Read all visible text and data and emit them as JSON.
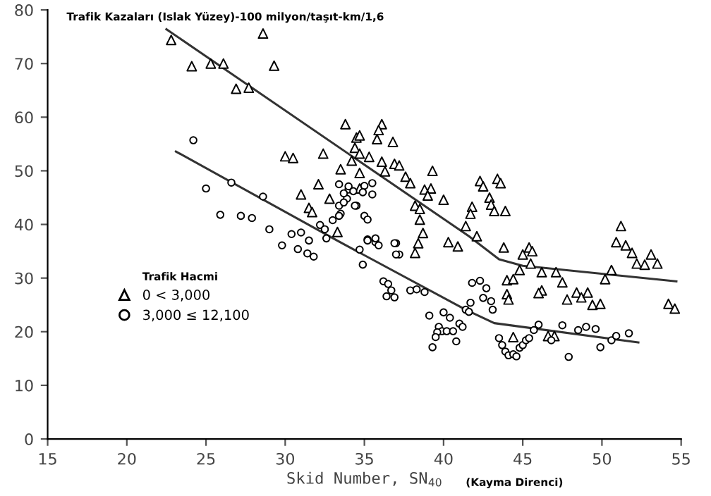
{
  "chart_data": {
    "type": "scatter",
    "title": "Trafik Kazaları (Islak Yüzey)-100 milyon/taşıt-km/1,6",
    "xlabel": "Skid Number, SN$_{40}$",
    "annotations": [
      "(Kayma Direnci)"
    ],
    "legend_title": "Trafik Hacmi",
    "legend": "left",
    "grid": false,
    "xlim": [
      15,
      55
    ],
    "ylim": [
      0,
      80
    ],
    "xticks": [
      15,
      20,
      25,
      30,
      35,
      40,
      45,
      50,
      55
    ],
    "yticks": [
      0,
      10,
      20,
      30,
      40,
      50,
      60,
      70,
      80
    ],
    "series": [
      {
        "name": "0 < 3,000",
        "marker": "triangle",
        "color": "#000000",
        "x": [
          22.8,
          24.1,
          25.3,
          26.1,
          26.9,
          27.7,
          28.6,
          29.3,
          30.0,
          30.5,
          31.0,
          31.5,
          31.7,
          32.1,
          32.4,
          32.8,
          33.3,
          33.5,
          33.8,
          34.2,
          34.4,
          34.5,
          34.7,
          34.7,
          34.7,
          34.7,
          36.1,
          35.9,
          35.8,
          36.8,
          35.3,
          36.1,
          36.9,
          37.2,
          36.3,
          39.3,
          37.6,
          37.9,
          38.8,
          39.2,
          39.0,
          40.0,
          38.2,
          38.5,
          38.5,
          42.3,
          42.5,
          43.4,
          43.6,
          42.9,
          43.0,
          41.8,
          41.7,
          43.2,
          43.9,
          41.4,
          38.7,
          42.1,
          40.3,
          51.2,
          50.9,
          51.5,
          38.4,
          38.2,
          40.9,
          43.8,
          45.0,
          45.4,
          45.6,
          45.5,
          44.8,
          44.0,
          44.4,
          46.2,
          47.1,
          47.5,
          46.2,
          46.0,
          44.0,
          44.1,
          47.8,
          48.4,
          48.7,
          49.1,
          49.4,
          49.9,
          50.2,
          50.6,
          51.9,
          52.2,
          52.7,
          53.1,
          53.5,
          54.2,
          54.6,
          44.4,
          46.6,
          47.0
        ],
        "values": [
          74.4,
          69.5,
          70.0,
          70.0,
          65.3,
          65.5,
          75.6,
          69.6,
          52.7,
          52.4,
          45.6,
          43.1,
          42.3,
          47.5,
          53.2,
          44.8,
          38.6,
          50.3,
          58.7,
          51.9,
          54.3,
          56.2,
          56.6,
          53.2,
          49.6,
          46.7,
          58.7,
          57.6,
          55.9,
          55.4,
          52.6,
          51.7,
          51.3,
          51.0,
          49.9,
          50.0,
          48.9,
          47.7,
          46.5,
          46.7,
          45.4,
          44.6,
          43.5,
          42.9,
          40.9,
          48.1,
          47.1,
          48.5,
          47.7,
          45.0,
          43.7,
          43.3,
          42.0,
          42.5,
          42.5,
          39.7,
          38.4,
          37.8,
          36.7,
          39.7,
          36.7,
          36.1,
          36.5,
          34.7,
          35.9,
          35.7,
          34.4,
          35.7,
          35.0,
          32.7,
          31.5,
          29.6,
          29.8,
          31.1,
          31.1,
          29.2,
          27.7,
          27.2,
          27.0,
          26.0,
          26.0,
          27.3,
          26.4,
          27.3,
          25.0,
          25.2,
          29.8,
          31.5,
          34.7,
          32.7,
          32.5,
          34.4,
          32.7,
          25.2,
          24.3,
          19.0,
          19.2,
          19.2
        ]
      },
      {
        "name": "3,000 ≤ 12,100",
        "marker": "circle",
        "color": "#000000",
        "x": [
          24.2,
          25.0,
          26.6,
          25.9,
          27.2,
          27.9,
          28.6,
          29.0,
          29.8,
          30.4,
          31.0,
          31.5,
          32.2,
          32.5,
          32.6,
          33.0,
          33.4,
          33.5,
          33.9,
          34.0,
          34.5,
          35.0,
          30.8,
          31.4,
          31.8,
          34.9,
          33.4,
          34.0,
          33.7,
          34.3,
          34.9,
          35.5,
          33.7,
          34.4,
          35.0,
          35.2,
          35.5,
          33.4,
          35.2,
          35.7,
          37.0,
          34.7,
          35.2,
          35.7,
          35.9,
          36.9,
          37.2,
          37.0,
          36.2,
          36.5,
          36.7,
          36.4,
          36.9,
          37.9,
          38.3,
          38.8,
          39.1,
          40.0,
          40.4,
          39.7,
          39.9,
          39.6,
          40.2,
          40.6,
          39.5,
          40.8,
          39.3,
          41.0,
          41.2,
          41.4,
          41.6,
          41.7,
          41.8,
          42.3,
          42.7,
          42.5,
          43.0,
          43.1,
          43.5,
          43.7,
          43.9,
          44.1,
          44.4,
          44.6,
          44.8,
          45.0,
          45.2,
          45.4,
          45.7,
          46.0,
          46.8,
          47.5,
          47.9,
          48.5,
          49.0,
          49.6,
          49.9,
          50.6,
          50.9,
          51.7
        ],
        "values": [
          55.7,
          46.7,
          47.8,
          41.8,
          41.6,
          41.2,
          45.2,
          39.1,
          36.1,
          38.2,
          38.5,
          37.0,
          39.9,
          39.1,
          37.4,
          40.8,
          43.5,
          42.0,
          44.8,
          46.5,
          43.5,
          47.2,
          35.4,
          34.6,
          34.0,
          32.5,
          47.5,
          47.1,
          45.8,
          46.2,
          46.0,
          45.6,
          44.1,
          43.5,
          41.6,
          40.9,
          47.7,
          41.6,
          37.2,
          36.7,
          36.5,
          35.3,
          37.0,
          37.4,
          36.1,
          36.5,
          34.4,
          34.4,
          29.4,
          28.9,
          27.7,
          26.6,
          26.4,
          27.7,
          27.9,
          27.4,
          23.0,
          23.6,
          22.6,
          20.9,
          20.1,
          19.9,
          20.1,
          20.1,
          19.0,
          18.2,
          17.1,
          21.5,
          20.9,
          24.1,
          23.7,
          25.4,
          29.1,
          29.5,
          28.1,
          26.3,
          25.7,
          24.1,
          18.8,
          17.5,
          16.3,
          15.6,
          15.8,
          15.4,
          17.0,
          17.5,
          18.4,
          18.8,
          20.3,
          21.3,
          18.4,
          21.2,
          15.3,
          20.3,
          20.9,
          20.5,
          17.1,
          18.4,
          19.2,
          19.7
        ]
      },
      {
        "type": "line",
        "line_style": "solid",
        "color": "#333333",
        "x": [
          22.5,
          41.6,
          43.5,
          45.0,
          54.7
        ],
        "values": [
          76.4,
          37.8,
          33.5,
          32.3,
          29.4
        ]
      },
      {
        "type": "line",
        "line_style": "solid",
        "color": "#333333",
        "x": [
          23.1,
          33.4,
          41.4,
          43.2,
          52.3
        ],
        "values": [
          53.6,
          36.8,
          24.1,
          21.6,
          18.0
        ]
      }
    ]
  }
}
